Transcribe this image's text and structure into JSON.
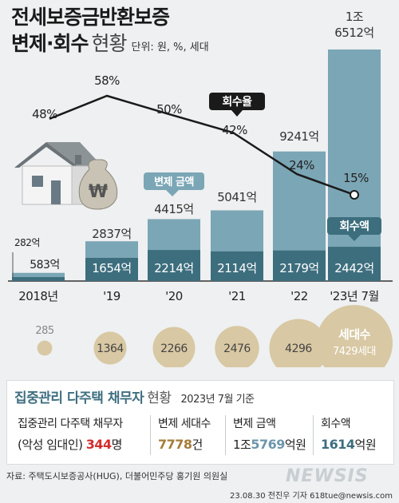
{
  "title_line1": "전세보증금반환보증",
  "title_line2": "변제·회수",
  "title_line2_light": "현황",
  "unit_note": "단위: 원, %, 세대",
  "colors": {
    "bar_light": "#7ba6b5",
    "bar_dark": "#3d6e7e",
    "circle": "#d8c8a3",
    "line": "#1a1a1a",
    "accent_red": "#d32d2d",
    "accent_gold": "#a47d39",
    "accent_blue": "#6d96ad"
  },
  "chart_data": {
    "type": "bar",
    "categories": [
      "2018년",
      "'19",
      "'20",
      "'21",
      "'22",
      "'23년 7월"
    ],
    "series": [
      {
        "name": "변제 금액",
        "values": [
          "583억",
          "2837억",
          "4415억",
          "5041억",
          "9241억",
          "1조 6512억"
        ],
        "values_num": [
          583,
          2837,
          4415,
          5041,
          9241,
          16512
        ]
      },
      {
        "name": "회수액",
        "values": [
          "282억",
          "1654억",
          "2214억",
          "2114억",
          "2179억",
          "2442억"
        ],
        "values_num": [
          282,
          1654,
          2214,
          2114,
          2179,
          2442
        ]
      },
      {
        "name": "회수율",
        "values": [
          "48%",
          "58%",
          "50%",
          "42%",
          "24%",
          "15%"
        ],
        "values_num": [
          48,
          58,
          50,
          42,
          24,
          15
        ]
      },
      {
        "name": "세대수",
        "values": [
          "285",
          "1364",
          "2266",
          "2476",
          "4296",
          "7429세대"
        ],
        "values_num": [
          285,
          1364,
          2266,
          2476,
          4296,
          7429
        ]
      }
    ],
    "legend": {
      "repay": "변제 금액",
      "rate": "회수율",
      "recovered": "회수액",
      "households": "세대수"
    }
  },
  "summary": {
    "title": "집중관리 다주택 채무자",
    "title_light": "현황",
    "date": "2023년 7월 기준",
    "cells": [
      {
        "label": "집중관리 다주택 채무자",
        "prefix": "(악성 임대인)",
        "value": "344",
        "suffix": "명",
        "color": "#d32d2d"
      },
      {
        "label": "변제 세대수",
        "prefix": "",
        "value": "7778",
        "suffix": "건",
        "color": "#a47d39"
      },
      {
        "label": "변제 금액",
        "prefix": "1조",
        "value": "5769",
        "suffix": "억원",
        "color": "#6d96ad"
      },
      {
        "label": "회수액",
        "prefix": "",
        "value": "1614",
        "suffix": "억원",
        "color": "#3d6e7e"
      }
    ]
  },
  "source": "자료: 주택도시보증공사(HUG), 더불어민주당 홍기원 의원실",
  "credit": "23.08.30 전진우 기자 618tue@newsis.com",
  "logo": "NEWSIS"
}
